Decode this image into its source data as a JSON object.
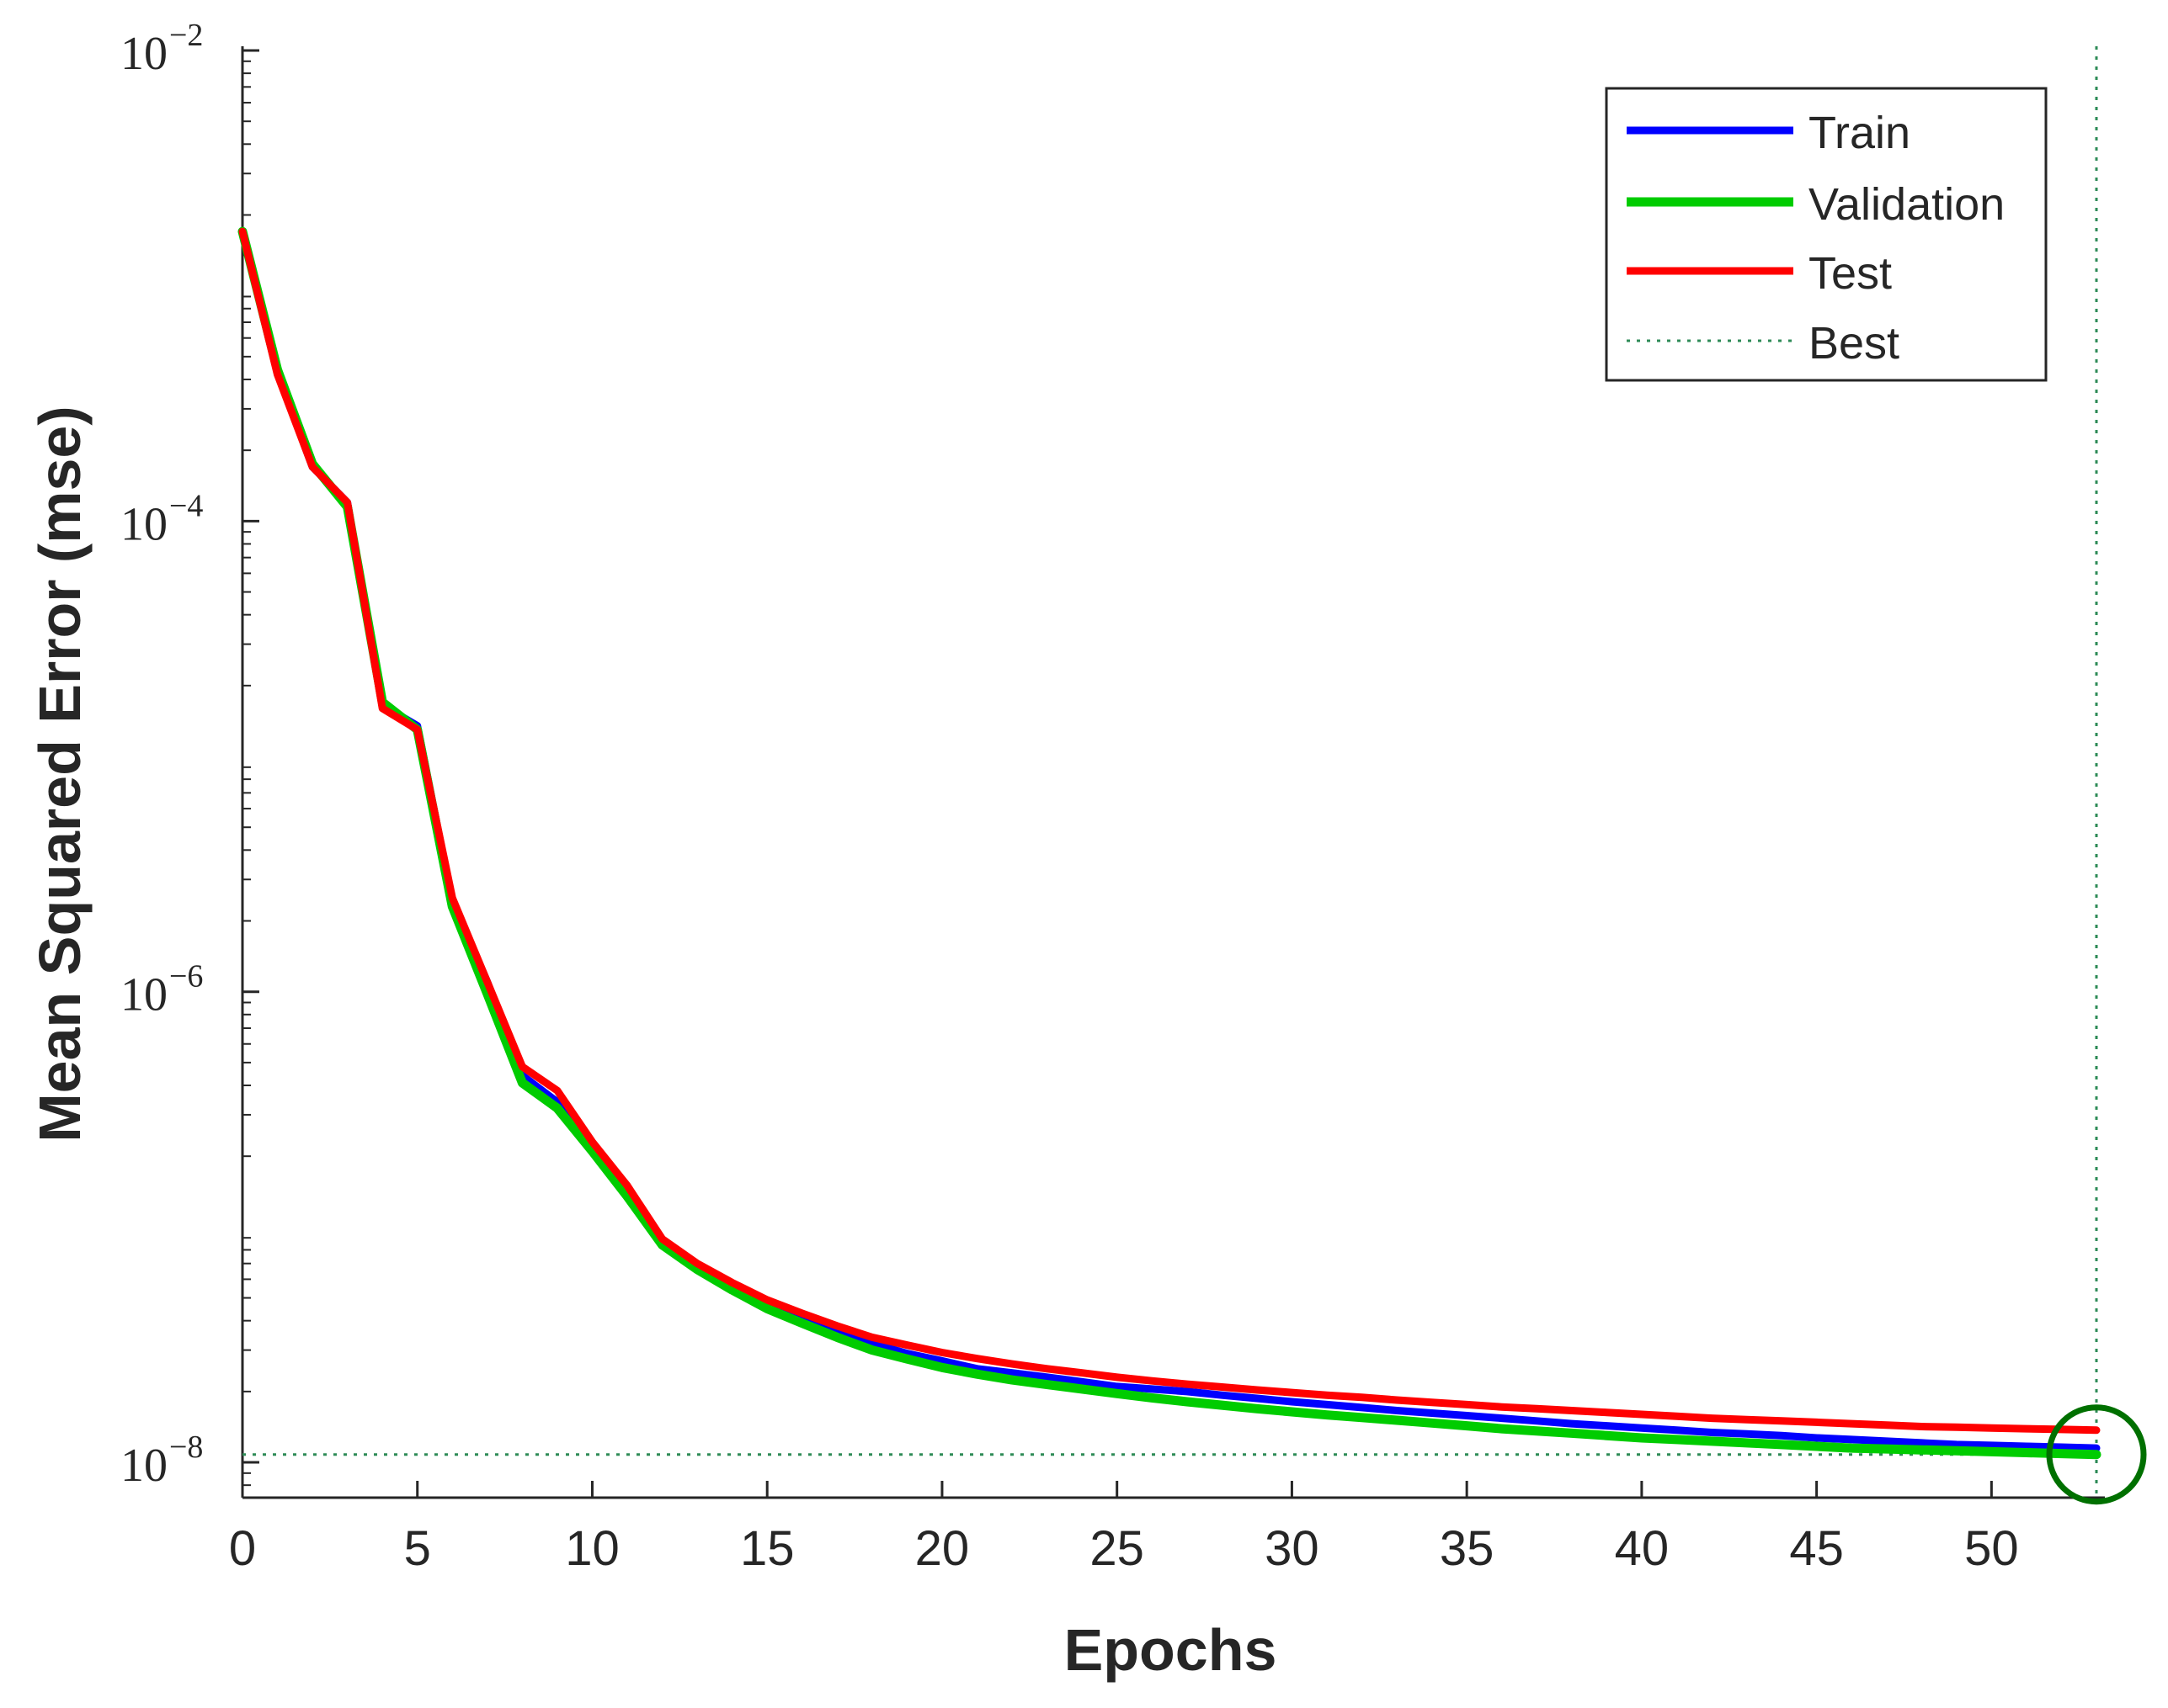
{
  "chart_data": {
    "type": "line",
    "title": "",
    "xlabel": "Epochs",
    "ylabel": "Mean Squared Error  (mse)",
    "yscale": "log",
    "xlim": [
      0,
      53
    ],
    "ylim_exponents": [
      -8.15,
      -2
    ],
    "x_ticks": [
      0,
      5,
      10,
      15,
      20,
      25,
      30,
      35,
      40,
      45,
      50
    ],
    "y_ticks": [
      {
        "base": "10",
        "exp": "−2",
        "value": 0.01
      },
      {
        "base": "10",
        "exp": "−4",
        "value": 0.0001
      },
      {
        "base": "10",
        "exp": "−6",
        "value": 1e-06
      },
      {
        "base": "10",
        "exp": "−8",
        "value": 1e-08
      }
    ],
    "x": [
      0,
      1,
      2,
      3,
      4,
      5,
      6,
      7,
      8,
      9,
      10,
      11,
      12,
      13,
      14,
      15,
      16,
      17,
      18,
      19,
      20,
      21,
      22,
      23,
      24,
      25,
      26,
      27,
      28,
      29,
      30,
      31,
      32,
      33,
      34,
      35,
      36,
      37,
      38,
      39,
      40,
      41,
      42,
      43,
      44,
      45,
      46,
      47,
      48,
      49,
      50,
      51,
      52,
      53
    ],
    "series": [
      {
        "name": "Train",
        "color": "#0000ff",
        "values": [
          0.0017,
          0.00043,
          0.00017,
          0.00012,
          1.65e-05,
          1.35e-05,
          2.4e-06,
          1.1e-06,
          4.4e-07,
          3.4e-07,
          2.2e-07,
          1.4e-07,
          8.7e-08,
          6.8e-08,
          5.6e-08,
          4.7e-08,
          4.1e-08,
          3.6e-08,
          3.2e-08,
          2.9e-08,
          2.7e-08,
          2.5e-08,
          2.4e-08,
          2.3e-08,
          2.2e-08,
          2.1e-08,
          2.05e-08,
          2e-08,
          1.93e-08,
          1.87e-08,
          1.81e-08,
          1.76e-08,
          1.71e-08,
          1.66e-08,
          1.62e-08,
          1.58e-08,
          1.54e-08,
          1.5e-08,
          1.46e-08,
          1.43e-08,
          1.4e-08,
          1.37e-08,
          1.34e-08,
          1.32e-08,
          1.3e-08,
          1.27e-08,
          1.25e-08,
          1.23e-08,
          1.21e-08,
          1.19e-08,
          1.18e-08,
          1.17e-08,
          1.16e-08,
          1.15e-08
        ]
      },
      {
        "name": "Validation",
        "color": "#00cc00",
        "values": [
          0.0017,
          0.00044,
          0.000175,
          0.000115,
          1.7e-05,
          1.3e-05,
          2.3e-06,
          9.8e-07,
          4.1e-07,
          3.2e-07,
          2.1e-07,
          1.35e-07,
          8.4e-08,
          6.6e-08,
          5.4e-08,
          4.5e-08,
          3.9e-08,
          3.4e-08,
          3e-08,
          2.75e-08,
          2.53e-08,
          2.37e-08,
          2.24e-08,
          2.14e-08,
          2.05e-08,
          1.96e-08,
          1.88e-08,
          1.81e-08,
          1.75e-08,
          1.69e-08,
          1.64e-08,
          1.59e-08,
          1.55e-08,
          1.51e-08,
          1.47e-08,
          1.43e-08,
          1.39e-08,
          1.36e-08,
          1.33e-08,
          1.3e-08,
          1.27e-08,
          1.25e-08,
          1.23e-08,
          1.21e-08,
          1.19e-08,
          1.17e-08,
          1.15e-08,
          1.14e-08,
          1.13e-08,
          1.12e-08,
          1.11e-08,
          1.1e-08,
          1.09e-08,
          1.08e-08
        ]
      },
      {
        "name": "Test",
        "color": "#ff0000",
        "values": [
          0.0017,
          0.00042,
          0.00017,
          0.00012,
          1.6e-05,
          1.3e-05,
          2.5e-06,
          1.1e-06,
          4.8e-07,
          3.8e-07,
          2.3e-07,
          1.5e-07,
          8.9e-08,
          7e-08,
          5.8e-08,
          4.9e-08,
          4.3e-08,
          3.8e-08,
          3.4e-08,
          3.15e-08,
          2.93e-08,
          2.76e-08,
          2.62e-08,
          2.5e-08,
          2.4e-08,
          2.3e-08,
          2.22e-08,
          2.15e-08,
          2.09e-08,
          2.03e-08,
          1.98e-08,
          1.93e-08,
          1.89e-08,
          1.84e-08,
          1.8e-08,
          1.76e-08,
          1.72e-08,
          1.69e-08,
          1.66e-08,
          1.63e-08,
          1.6e-08,
          1.57e-08,
          1.54e-08,
          1.52e-08,
          1.5e-08,
          1.48e-08,
          1.46e-08,
          1.44e-08,
          1.42e-08,
          1.41e-08,
          1.4e-08,
          1.39e-08,
          1.38e-08,
          1.37e-08
        ]
      }
    ],
    "best": {
      "name": "Best",
      "epoch": 53,
      "value": 1.08e-08,
      "color": "#2e8b57",
      "marker_color": "#007000"
    },
    "legend": {
      "position": "top-right",
      "entries": [
        "Train",
        "Validation",
        "Test",
        "Best"
      ]
    }
  }
}
